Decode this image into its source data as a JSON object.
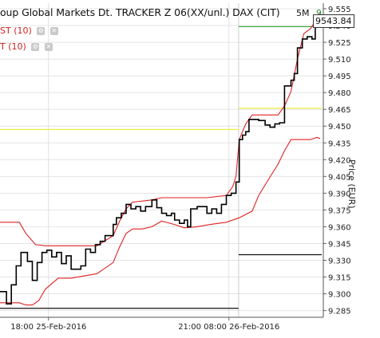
{
  "header": {
    "title": "oup Global Markets Dt. TRACKER Z 06(XX/unl.) DAX (CIT)",
    "timeframe": "5M",
    "timeframe_indicator": "9"
  },
  "indicators": [
    {
      "label": "ST (10)",
      "color": "#cc2222"
    },
    {
      "label": "T (10)",
      "color": "#cc2222"
    }
  ],
  "last_price_label": "9543.84",
  "chart_data": {
    "type": "line",
    "ylabel": "Price (EUR)",
    "ylim": [
      9.279,
      9.56
    ],
    "xlim": [
      0,
      100
    ],
    "y_ticks": [
      "9.555",
      "9.540",
      "9.525",
      "9.510",
      "9.495",
      "9.480",
      "9.465",
      "9.450",
      "9.435",
      "9.420",
      "9.405",
      "9.390",
      "9.375",
      "9.360",
      "9.345",
      "9.330",
      "9.315",
      "9.300",
      "9.285"
    ],
    "x_tick_labels": [
      {
        "label": "18:00 25-Feb-2016",
        "x": 15.0
      },
      {
        "label": "21:00 08:00 26-Feb-2016",
        "x": 70.8
      }
    ],
    "grid": true,
    "series": [
      {
        "role": "price",
        "color": "#000000",
        "points": [
          [
            0,
            9.302
          ],
          [
            2,
            9.302
          ],
          [
            2,
            9.291
          ],
          [
            3.5,
            9.291
          ],
          [
            3.5,
            9.308
          ],
          [
            5,
            9.308
          ],
          [
            5,
            9.325
          ],
          [
            6.5,
            9.325
          ],
          [
            6.5,
            9.337
          ],
          [
            8.5,
            9.337
          ],
          [
            8.5,
            9.329
          ],
          [
            10,
            9.329
          ],
          [
            10,
            9.312
          ],
          [
            11.5,
            9.312
          ],
          [
            11.5,
            9.328
          ],
          [
            13,
            9.328
          ],
          [
            13,
            9.337
          ],
          [
            14.5,
            9.337
          ],
          [
            14.5,
            9.339
          ],
          [
            16,
            9.339
          ],
          [
            16,
            9.333
          ],
          [
            17.5,
            9.333
          ],
          [
            17.5,
            9.337
          ],
          [
            19,
            9.337
          ],
          [
            19,
            9.327
          ],
          [
            20.5,
            9.327
          ],
          [
            20.5,
            9.334
          ],
          [
            22,
            9.334
          ],
          [
            22,
            9.322
          ],
          [
            25,
            9.322
          ],
          [
            25,
            9.325
          ],
          [
            26.5,
            9.325
          ],
          [
            26.5,
            9.34
          ],
          [
            28,
            9.34
          ],
          [
            28,
            9.337
          ],
          [
            29.5,
            9.337
          ],
          [
            29.5,
            9.344
          ],
          [
            31,
            9.344
          ],
          [
            31,
            9.347
          ],
          [
            32.5,
            9.347
          ],
          [
            32.5,
            9.352
          ],
          [
            35,
            9.352
          ],
          [
            35,
            9.362
          ],
          [
            36,
            9.362
          ],
          [
            36,
            9.368
          ],
          [
            37.5,
            9.368
          ],
          [
            37.5,
            9.372
          ],
          [
            39,
            9.372
          ],
          [
            39,
            9.38
          ],
          [
            40.5,
            9.38
          ],
          [
            40.5,
            9.376
          ],
          [
            42,
            9.376
          ],
          [
            42,
            9.378
          ],
          [
            43.5,
            9.378
          ],
          [
            43.5,
            9.374
          ],
          [
            45,
            9.374
          ],
          [
            45,
            9.378
          ],
          [
            47,
            9.378
          ],
          [
            47,
            9.384
          ],
          [
            48.5,
            9.384
          ],
          [
            48.5,
            9.377
          ],
          [
            50,
            9.377
          ],
          [
            50,
            9.372
          ],
          [
            51.5,
            9.372
          ],
          [
            51.5,
            9.37
          ],
          [
            53,
            9.37
          ],
          [
            53,
            9.372
          ],
          [
            54,
            9.372
          ],
          [
            54,
            9.366
          ],
          [
            55.5,
            9.366
          ],
          [
            55.5,
            9.363
          ],
          [
            57,
            9.363
          ],
          [
            57,
            9.366
          ],
          [
            58,
            9.366
          ],
          [
            58,
            9.36
          ],
          [
            59,
            9.36
          ],
          [
            59,
            9.376
          ],
          [
            61,
            9.376
          ],
          [
            61,
            9.378
          ],
          [
            62.5,
            9.378
          ],
          [
            62.5,
            9.378
          ],
          [
            64,
            9.378
          ],
          [
            64,
            9.372
          ],
          [
            65.5,
            9.372
          ],
          [
            65.5,
            9.376
          ],
          [
            67,
            9.376
          ],
          [
            67,
            9.372
          ],
          [
            68.5,
            9.372
          ],
          [
            68.5,
            9.38
          ],
          [
            70,
            9.38
          ],
          [
            70,
            9.388
          ],
          [
            71.5,
            9.388
          ],
          [
            71.5,
            9.39
          ],
          [
            73,
            9.39
          ],
          [
            73,
            9.4
          ],
          [
            74,
            9.4
          ],
          [
            74,
            9.438
          ],
          [
            75,
            9.438
          ],
          [
            75,
            9.442
          ],
          [
            76,
            9.442
          ],
          [
            76,
            9.445
          ],
          [
            77,
            9.445
          ],
          [
            77,
            9.456
          ],
          [
            80,
            9.456
          ],
          [
            80,
            9.455
          ],
          [
            82,
            9.455
          ],
          [
            82,
            9.451
          ],
          [
            83.5,
            9.451
          ],
          [
            83.5,
            9.449
          ],
          [
            85,
            9.449
          ],
          [
            85,
            9.452
          ],
          [
            86.5,
            9.452
          ],
          [
            86.5,
            9.453
          ],
          [
            88,
            9.453
          ],
          [
            88,
            9.486
          ],
          [
            90,
            9.486
          ],
          [
            90,
            9.491
          ],
          [
            91,
            9.491
          ],
          [
            91,
            9.497
          ],
          [
            92,
            9.497
          ],
          [
            92,
            9.52
          ],
          [
            93.5,
            9.52
          ],
          [
            93.5,
            9.528
          ],
          [
            95,
            9.528
          ],
          [
            95,
            9.53
          ],
          [
            96.5,
            9.53
          ],
          [
            96.5,
            9.528
          ],
          [
            97.5,
            9.528
          ],
          [
            97.5,
            9.544
          ],
          [
            98.5,
            9.544
          ],
          [
            98.5,
            9.545
          ]
        ]
      },
      {
        "role": "upper-band",
        "color": "#dd2222",
        "points": [
          [
            0,
            9.364
          ],
          [
            6,
            9.364
          ],
          [
            8,
            9.354
          ],
          [
            11,
            9.344
          ],
          [
            14,
            9.343
          ],
          [
            22,
            9.343
          ],
          [
            30,
            9.343
          ],
          [
            35,
            9.352
          ],
          [
            37,
            9.365
          ],
          [
            39,
            9.376
          ],
          [
            41,
            9.382
          ],
          [
            47,
            9.384
          ],
          [
            50,
            9.386
          ],
          [
            57,
            9.386
          ],
          [
            64,
            9.386
          ],
          [
            70,
            9.388
          ],
          [
            72,
            9.396
          ],
          [
            73,
            9.405
          ],
          [
            74,
            9.438
          ],
          [
            76,
            9.452
          ],
          [
            78,
            9.46
          ],
          [
            82,
            9.46
          ],
          [
            86,
            9.46
          ],
          [
            88,
            9.468
          ],
          [
            90,
            9.481
          ],
          [
            92,
            9.51
          ],
          [
            94,
            9.533
          ],
          [
            96,
            9.537
          ],
          [
            98,
            9.546
          ],
          [
            99,
            9.552
          ]
        ]
      },
      {
        "role": "lower-band",
        "color": "#dd2222",
        "points": [
          [
            0,
            9.292
          ],
          [
            6,
            9.292
          ],
          [
            8,
            9.29
          ],
          [
            10,
            9.29
          ],
          [
            12,
            9.294
          ],
          [
            14,
            9.304
          ],
          [
            18,
            9.314
          ],
          [
            22,
            9.314
          ],
          [
            30,
            9.318
          ],
          [
            35,
            9.328
          ],
          [
            37,
            9.342
          ],
          [
            39,
            9.354
          ],
          [
            41,
            9.358
          ],
          [
            44,
            9.358
          ],
          [
            47,
            9.36
          ],
          [
            50,
            9.365
          ],
          [
            54,
            9.362
          ],
          [
            57,
            9.359
          ],
          [
            61,
            9.36
          ],
          [
            65,
            9.362
          ],
          [
            70,
            9.364
          ],
          [
            74,
            9.368
          ],
          [
            78,
            9.374
          ],
          [
            80,
            9.388
          ],
          [
            83,
            9.402
          ],
          [
            86,
            9.416
          ],
          [
            88,
            9.428
          ],
          [
            90,
            9.438
          ],
          [
            96,
            9.438
          ],
          [
            98,
            9.44
          ],
          [
            99,
            9.439
          ]
        ]
      }
    ],
    "reference_lines": [
      {
        "color": "#eeee33",
        "y": 9.447,
        "x_range": [
          0,
          73.8
        ]
      },
      {
        "color": "#eeee33",
        "y": 9.466,
        "x_range": [
          73.8,
          99.5
        ]
      },
      {
        "color": "#33aa33",
        "y": 9.539,
        "x_range": [
          73.8,
          99.5
        ]
      },
      {
        "color": "#111111",
        "y": 9.287,
        "x_range": [
          0,
          73.8
        ]
      },
      {
        "color": "#111111",
        "y": 9.335,
        "x_range": [
          73.8,
          99.5
        ]
      }
    ]
  }
}
